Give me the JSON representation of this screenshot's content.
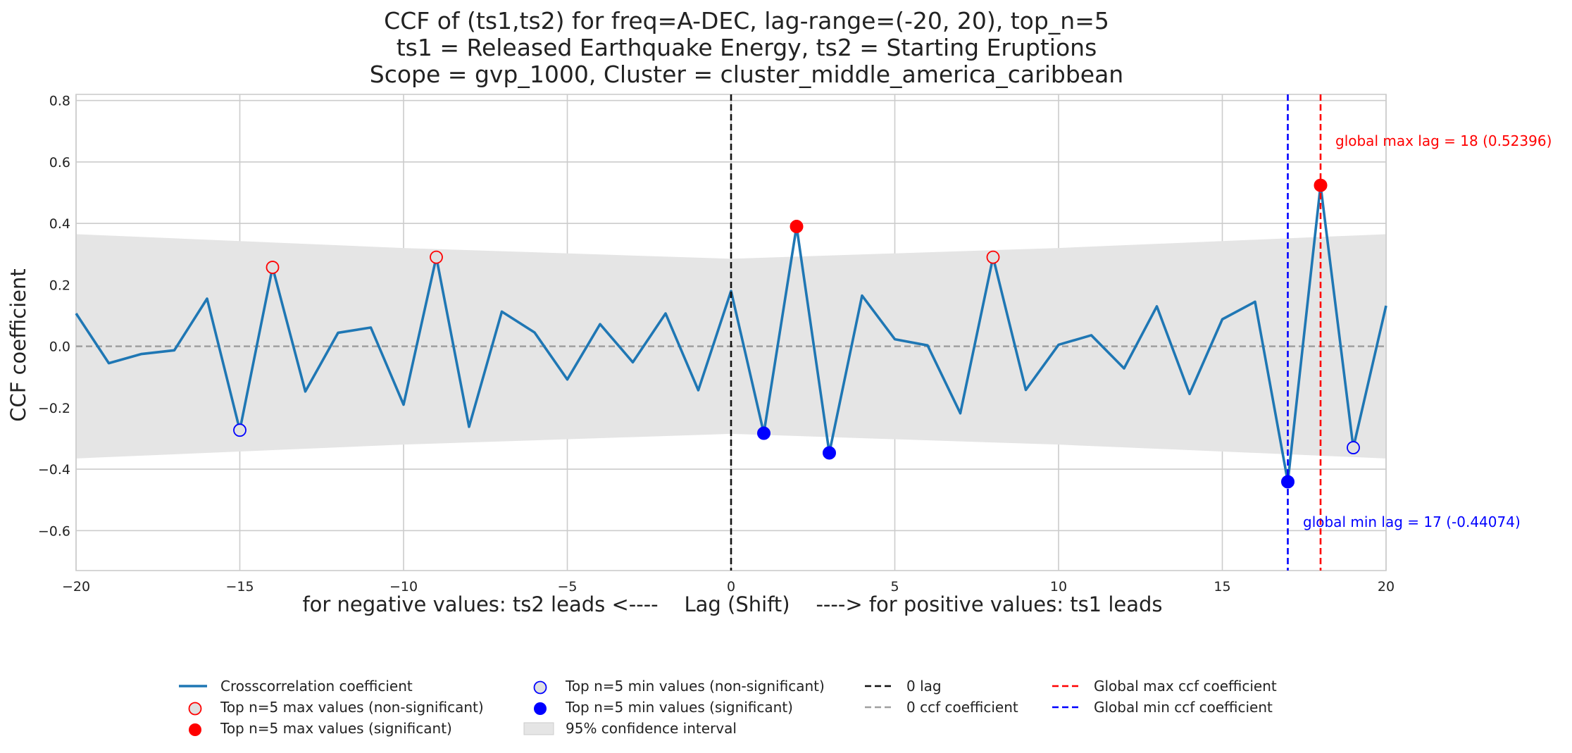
{
  "chart_data": {
    "type": "line",
    "title_lines": [
      "CCF of (ts1,ts2) for freq=A-DEC, lag-range=(-20, 20), top_n=5",
      "ts1 = Released Earthquake Energy, ts2 = Starting Eruptions",
      "Scope = gvp_1000, Cluster = cluster_middle_america_caribbean"
    ],
    "xlabel": "for negative values: ts2 leads <----    Lag (Shift)    ----> for positive values: ts1 leads",
    "ylabel": "CCF coefficient",
    "xlim": [
      -20,
      20
    ],
    "ylim": [
      -0.73,
      0.82
    ],
    "x_ticks": [
      -20,
      -15,
      -10,
      -5,
      0,
      5,
      10,
      15,
      20
    ],
    "x_tick_labels": [
      "−20",
      "−15",
      "−10",
      "−5",
      "0",
      "5",
      "10",
      "15",
      "20"
    ],
    "y_ticks": [
      -0.6,
      -0.4,
      -0.2,
      0.0,
      0.2,
      0.4,
      0.6,
      0.8
    ],
    "y_tick_labels": [
      "−0.6",
      "−0.4",
      "−0.2",
      "0.0",
      "0.2",
      "0.4",
      "0.6",
      "0.8"
    ],
    "grid": true,
    "legend_position": "bottom",
    "series": [
      {
        "x": [
          -20,
          -19,
          -18,
          -17,
          -16,
          -15,
          -14,
          -13,
          -12,
          -11,
          -10,
          -9,
          -8,
          -7,
          -6,
          -5,
          -4,
          -3,
          -2,
          -1,
          0,
          1,
          2,
          3,
          4,
          5,
          6,
          7,
          8,
          9,
          10,
          11,
          12,
          13,
          14,
          15,
          16,
          17,
          18,
          19,
          20
        ],
        "values": [
          0.107,
          -0.055,
          -0.025,
          -0.013,
          0.155,
          -0.273,
          0.257,
          -0.147,
          0.044,
          0.061,
          -0.19,
          0.29,
          -0.262,
          0.113,
          0.045,
          -0.108,
          0.072,
          -0.052,
          0.107,
          -0.143,
          0.18,
          -0.283,
          0.39,
          -0.347,
          0.165,
          0.023,
          0.003,
          -0.218,
          0.29,
          -0.142,
          0.005,
          0.036,
          -0.072,
          0.13,
          -0.155,
          0.088,
          0.145,
          -0.441,
          0.524,
          -0.33,
          0.132
        ]
      }
    ],
    "confidence_interval": {
      "x": [
        -20,
        -10,
        0,
        10,
        20
      ],
      "upper": [
        0.365,
        0.32,
        0.285,
        0.32,
        0.365
      ],
      "lower": [
        -0.365,
        -0.32,
        -0.285,
        -0.32,
        -0.365
      ]
    },
    "top_max_nonsignificant": [
      {
        "x": -14,
        "y": 0.257
      },
      {
        "x": -9,
        "y": 0.29
      },
      {
        "x": 8,
        "y": 0.29
      }
    ],
    "top_max_significant": [
      {
        "x": 2,
        "y": 0.39
      },
      {
        "x": 18,
        "y": 0.524
      }
    ],
    "top_min_nonsignificant": [
      {
        "x": -15,
        "y": -0.273
      },
      {
        "x": 19,
        "y": -0.33
      }
    ],
    "top_min_significant": [
      {
        "x": 1,
        "y": -0.283
      },
      {
        "x": 3,
        "y": -0.347
      },
      {
        "x": 17,
        "y": -0.441
      }
    ],
    "zero_lag_x": 0,
    "global_max": {
      "x": 18,
      "label": "global max lag = 18 (0.52396)"
    },
    "global_min": {
      "x": 17,
      "label": "global min lag = 17 (-0.44074)"
    },
    "colors": {
      "line": "#1f77b4",
      "max_marker": "#ff0000",
      "min_marker": "#0000ff",
      "nonsig_fill": "#e0e0e0",
      "ci_fill": "#e5e5e5",
      "zero_lag": "#111111",
      "zero_ccf": "#a0a0a0",
      "grid": "#cccccc"
    },
    "legend": [
      "Crosscorrelation coefficient",
      "Top n=5 max values (non-significant)",
      "Top n=5 max values (significant)",
      "Top n=5 min values (non-significant)",
      "Top n=5 min values (significant)",
      "95% confidence interval",
      "0 lag",
      "0 ccf coefficient",
      "Global max ccf coefficient",
      "Global min ccf coefficient"
    ]
  }
}
